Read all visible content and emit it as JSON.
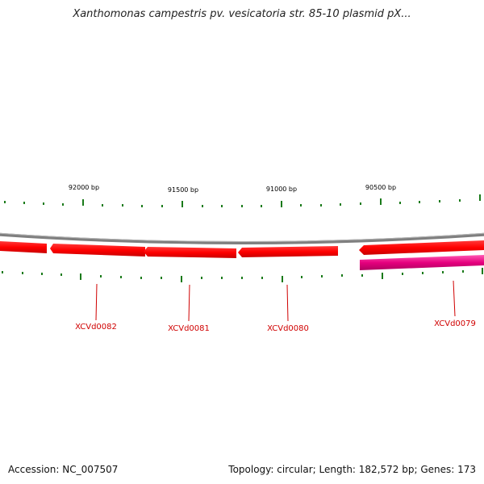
{
  "title": "Xanthomonas campestris pv. vesicatoria str. 85-10 plasmid pX...",
  "ruler_labels": [
    "92000 bp",
    "91500 bp",
    "91000 bp",
    "90500 bp"
  ],
  "genes": [
    "XCVd0082",
    "XCVd0081",
    "XCVd0080",
    "XCVd0079"
  ],
  "colors": {
    "backbone": "#808080",
    "forward_gene": "#ff0000",
    "reverse_gene": "#e6007e",
    "tick": "#1a7a1a",
    "gene_label": "#d00000"
  },
  "footer": {
    "accession": "Accession: NC_007507",
    "summary": "Topology: circular; Length: 182,572 bp; Genes: 173"
  }
}
